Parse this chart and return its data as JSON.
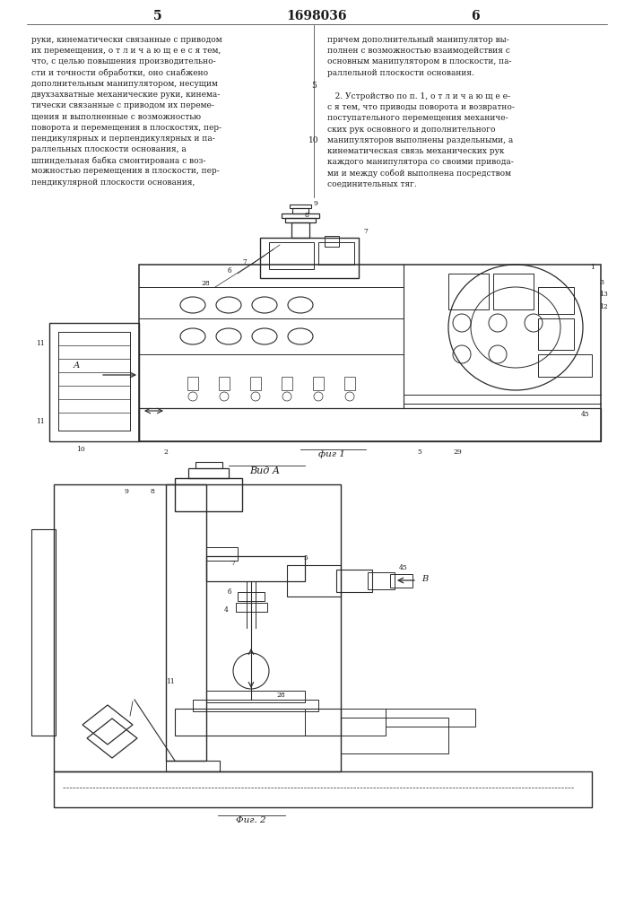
{
  "page_width": 7.07,
  "page_height": 10.0,
  "bg_color": "#ffffff",
  "header_left_num": "5",
  "header_center_num": "1698036",
  "header_right_num": "6",
  "left_col_text": [
    "руки, кинематически связанные с приводом",
    "их перемещения, о т л и ч а ю щ е е с я тем,",
    "что, с целью повышения производительно-",
    "сти и точности обработки, оно снабжено",
    "дополнительным манипулятором, несущим",
    "двухзахватные механические руки, кинема-",
    "тически связанные с приводом их переме-",
    "щения и выполненные с возможностью",
    "поворота и перемещения в плоскостях, пер-",
    "пендикулярных и перпендикулярных и па-",
    "раллельных плоскости основания, а",
    "шпиндельная бабка смонтирована с воз-",
    "можностью перемещения в плоскости, пер-",
    "пендикулярной плоскости основания,"
  ],
  "right_col_text_1": [
    "причем дополнительный манипулятор вы-",
    "полнен с возможностью взаимодействия с",
    "основным манипулятором в плоскости, па-",
    "раллельной плоскости основания."
  ],
  "right_col_text_2_rest": [
    "с я тем, что приводы поворота и возвратно-",
    "поступательного перемещения механиче-",
    "ских рук основного и дополнительного",
    "манипуляторов выполнены раздельными, а",
    "кинематическая связь механических рук",
    "каждого манипулятора со своими привода-",
    "ми и между собой выполнена посредством",
    "соединительных тяг."
  ],
  "fig1_label": "фиг 1",
  "fig2_label": "Фиг. 2",
  "viewA_label": "Вид А",
  "text_color": "#1a1a1a",
  "line_color": "#2a2a2a",
  "font_size_body": 6.5,
  "font_size_numbers": 5.5,
  "font_size_fig": 7.5
}
